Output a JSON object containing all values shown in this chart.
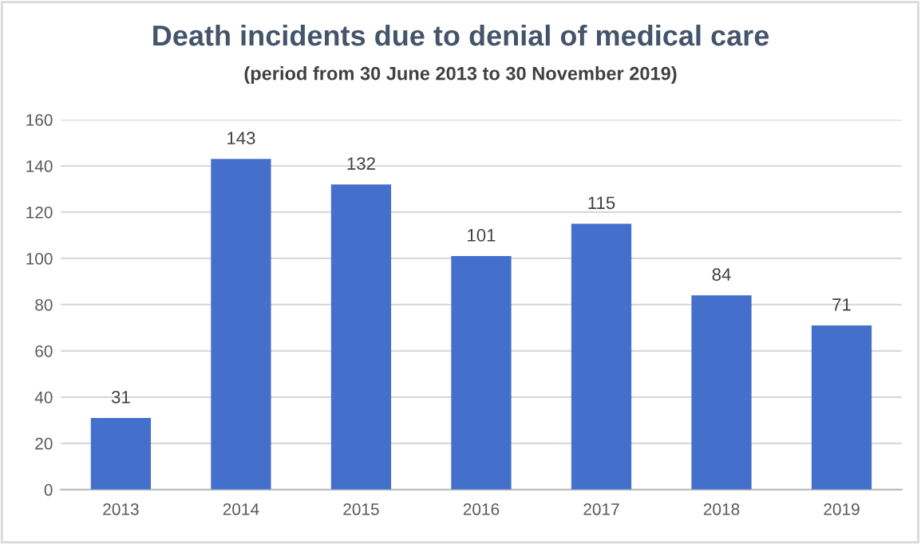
{
  "chart_data": {
    "type": "bar",
    "title": "Death incidents due to denial of medical care",
    "subtitle": "(period from 30 June 2013 to 30 November 2019)",
    "categories": [
      "2013",
      "2014",
      "2015",
      "2016",
      "2017",
      "2018",
      "2019"
    ],
    "values": [
      31,
      143,
      132,
      101,
      115,
      84,
      71
    ],
    "color": "#4470cc",
    "ylim": [
      0,
      160
    ],
    "yticks": [
      0,
      20,
      40,
      60,
      80,
      100,
      120,
      140,
      160
    ],
    "grid": "y",
    "data_labels": true
  }
}
